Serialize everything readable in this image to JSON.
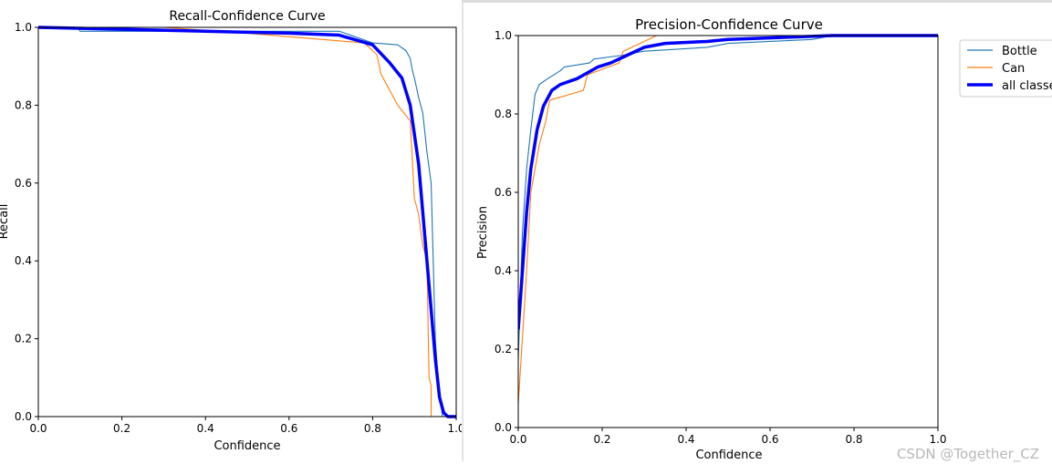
{
  "chart_data": [
    {
      "type": "line",
      "title": "Recall-Confidence Curve",
      "xlabel": "Confidence",
      "ylabel": "Recall",
      "xlim": [
        0,
        1
      ],
      "ylim": [
        0,
        1
      ],
      "xticks": [
        "0.0",
        "0.2",
        "0.4",
        "0.6",
        "0.8",
        "1.0"
      ],
      "yticks": [
        "0.0",
        "0.2",
        "0.4",
        "0.6",
        "0.8",
        "1.0"
      ],
      "grid": false,
      "series": [
        {
          "name": "Bottle",
          "color": "#1f77b4",
          "x": [
            0,
            0.095,
            0.1,
            0.72,
            0.8,
            0.86,
            0.88,
            0.89,
            0.895,
            0.9,
            0.91,
            0.92,
            0.93,
            0.94,
            0.945,
            0.95,
            0.96,
            0.965,
            0.967,
            1
          ],
          "y": [
            1,
            1,
            0.99,
            0.99,
            0.96,
            0.955,
            0.94,
            0.92,
            0.89,
            0.87,
            0.82,
            0.78,
            0.68,
            0.6,
            0.4,
            0.2,
            0.04,
            0.02,
            0,
            0
          ]
        },
        {
          "name": "Can",
          "color": "#ff7f0e",
          "x": [
            0,
            0.3,
            0.5,
            0.78,
            0.81,
            0.82,
            0.84,
            0.86,
            0.89,
            0.9,
            0.91,
            0.92,
            0.93,
            0.935,
            0.94,
            0.94,
            1
          ],
          "y": [
            1,
            1,
            0.985,
            0.96,
            0.93,
            0.88,
            0.84,
            0.8,
            0.76,
            0.56,
            0.52,
            0.44,
            0.4,
            0.1,
            0.08,
            0,
            0
          ]
        },
        {
          "name": "all classes",
          "color": "#0000ff",
          "x": [
            0,
            0.2,
            0.4,
            0.6,
            0.72,
            0.8,
            0.84,
            0.87,
            0.89,
            0.91,
            0.93,
            0.95,
            0.96,
            0.97,
            0.98,
            1
          ],
          "y": [
            1,
            0.995,
            0.99,
            0.985,
            0.98,
            0.955,
            0.91,
            0.87,
            0.8,
            0.65,
            0.4,
            0.15,
            0.05,
            0.01,
            0,
            0
          ]
        }
      ]
    },
    {
      "type": "line",
      "title": "Precision-Confidence Curve",
      "xlabel": "Confidence",
      "ylabel": "Precision",
      "xlim": [
        0,
        1
      ],
      "ylim": [
        0,
        1
      ],
      "xticks": [
        "0.0",
        "0.2",
        "0.4",
        "0.6",
        "0.8",
        "1.0"
      ],
      "yticks": [
        "0.0",
        "0.2",
        "0.4",
        "0.6",
        "0.8",
        "1.0"
      ],
      "grid": false,
      "legend": "outside-upper-right",
      "series": [
        {
          "name": "Bottle",
          "color": "#1f77b4",
          "x": [
            0,
            0.01,
            0.02,
            0.03,
            0.04,
            0.05,
            0.07,
            0.1,
            0.11,
            0.17,
            0.18,
            0.25,
            0.3,
            0.45,
            0.5,
            0.7,
            0.75,
            1
          ],
          "y": [
            0.17,
            0.5,
            0.66,
            0.76,
            0.85,
            0.875,
            0.89,
            0.91,
            0.92,
            0.93,
            0.94,
            0.95,
            0.96,
            0.97,
            0.98,
            0.99,
            1,
            1
          ]
        },
        {
          "name": "Can",
          "color": "#ff7f0e",
          "x": [
            0,
            0.02,
            0.03,
            0.05,
            0.065,
            0.075,
            0.155,
            0.165,
            0.24,
            0.25,
            0.33,
            1
          ],
          "y": [
            0.06,
            0.4,
            0.6,
            0.72,
            0.78,
            0.835,
            0.86,
            0.9,
            0.93,
            0.96,
            1,
            1
          ]
        },
        {
          "name": "all classes",
          "color": "#0000ff",
          "x": [
            0,
            0.01,
            0.02,
            0.03,
            0.045,
            0.06,
            0.08,
            0.1,
            0.14,
            0.19,
            0.22,
            0.26,
            0.3,
            0.35,
            0.45,
            0.5,
            0.75,
            1
          ],
          "y": [
            0.25,
            0.4,
            0.55,
            0.66,
            0.76,
            0.82,
            0.86,
            0.875,
            0.89,
            0.92,
            0.93,
            0.95,
            0.97,
            0.98,
            0.985,
            0.99,
            1,
            1
          ]
        }
      ]
    }
  ],
  "watermark": "CSDN @Together_CZ"
}
